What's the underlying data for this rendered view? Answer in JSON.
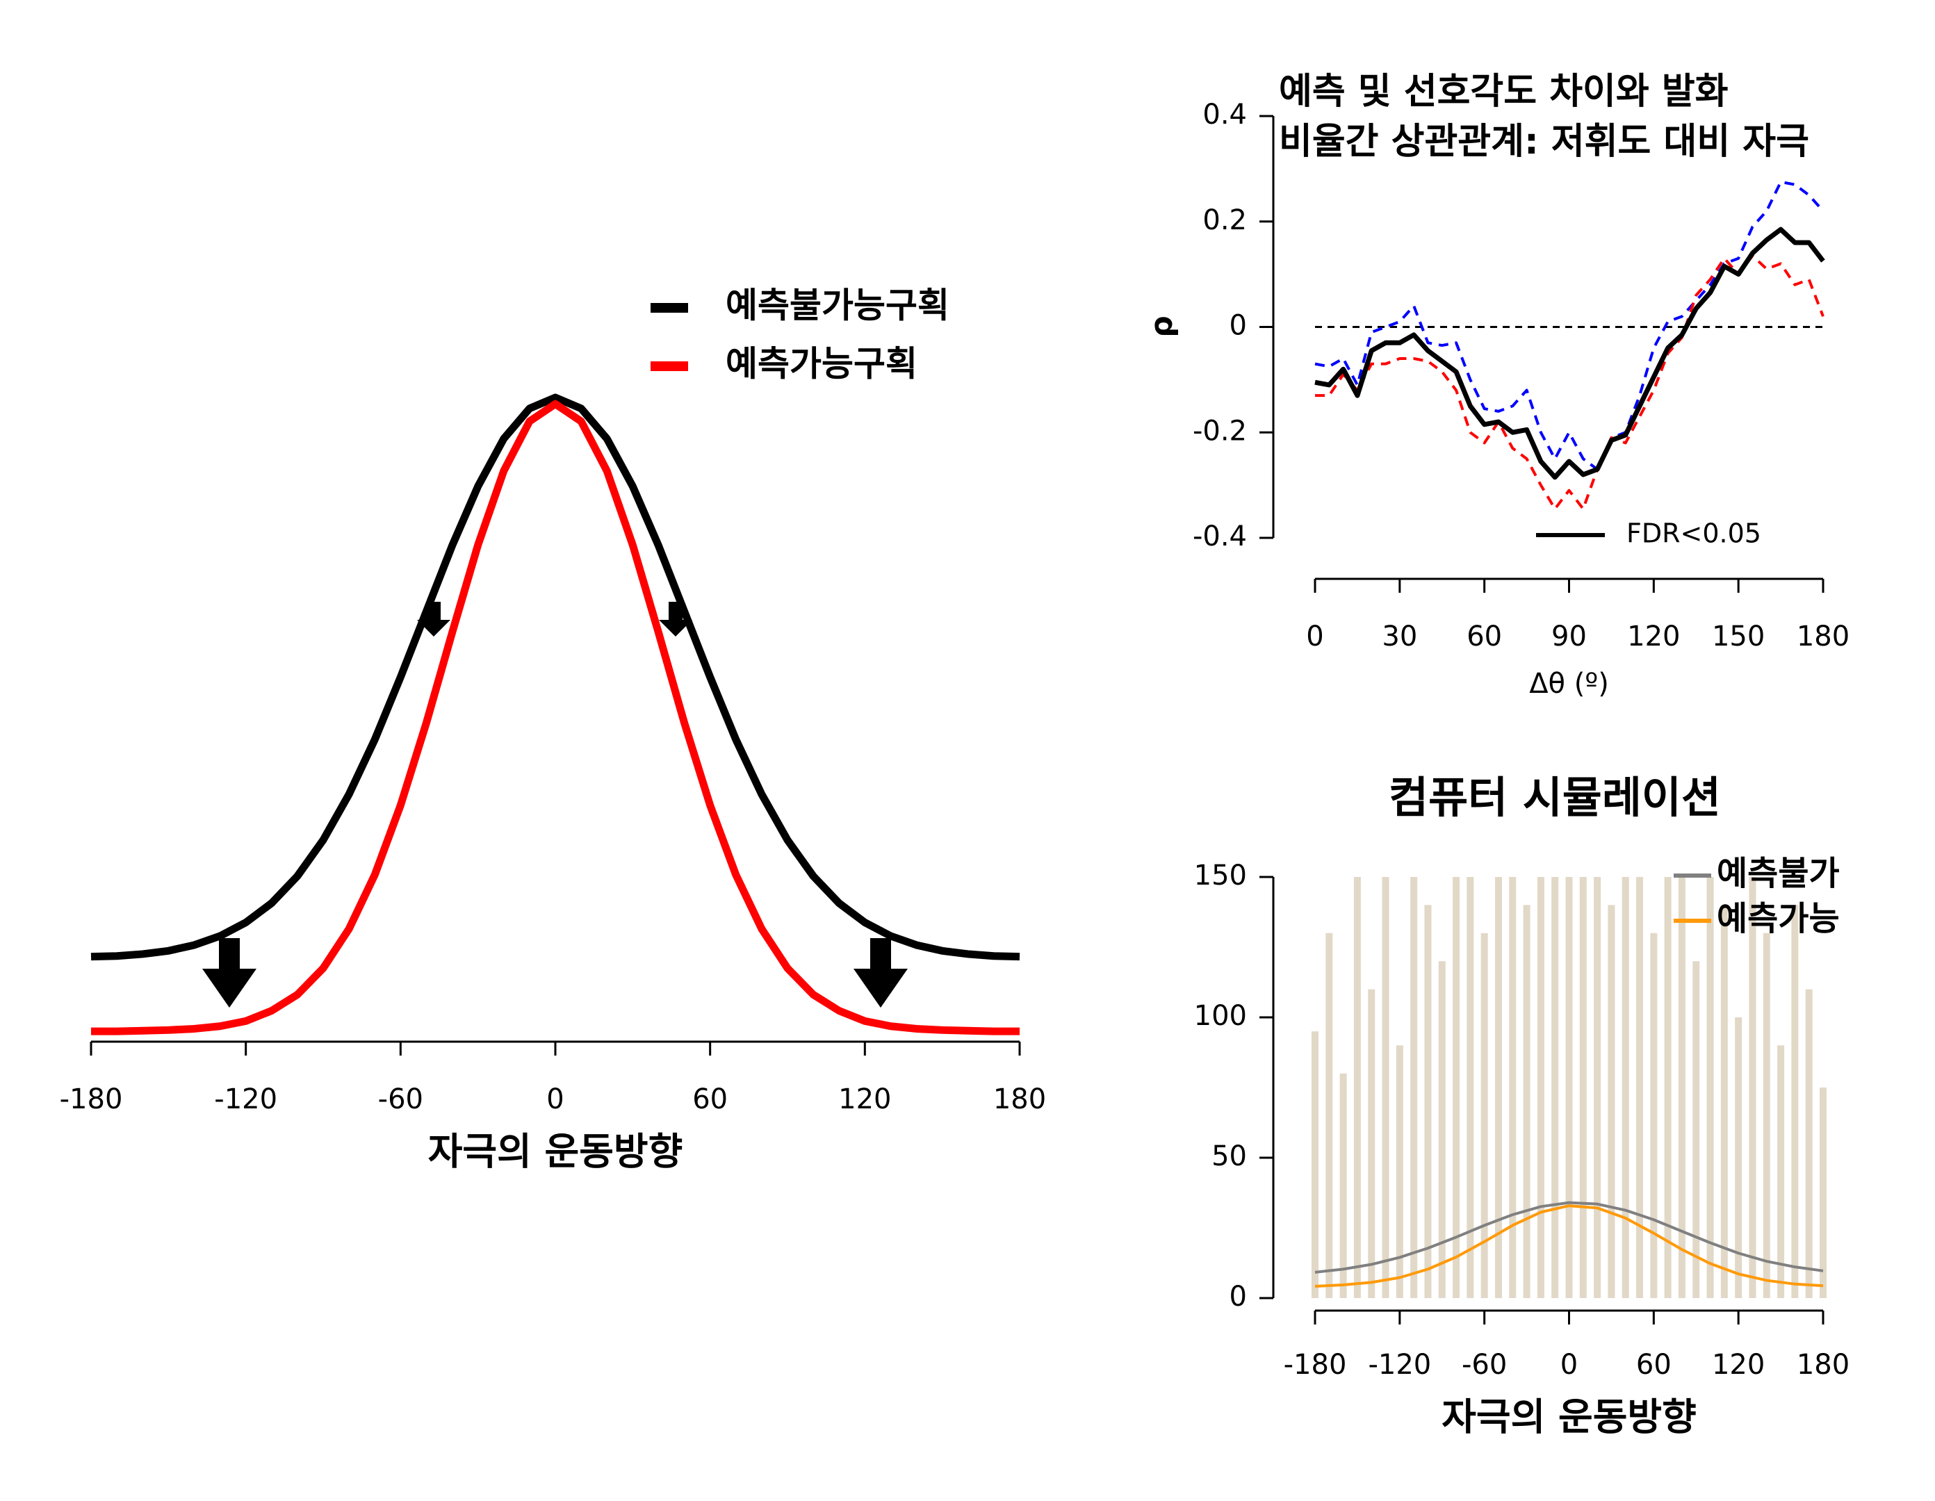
{
  "chart_data": [
    {
      "type": "line",
      "xlabel": "자극의 운동방향",
      "x": [
        -180,
        -170,
        -160,
        -150,
        -140,
        -130,
        -120,
        -110,
        -100,
        -90,
        -80,
        -70,
        -60,
        -50,
        -40,
        -30,
        -20,
        -10,
        0,
        10,
        20,
        30,
        40,
        50,
        60,
        70,
        80,
        90,
        100,
        110,
        120,
        130,
        140,
        150,
        160,
        170,
        180
      ],
      "xlim": [
        -180,
        180
      ],
      "xticks": [
        -180,
        -120,
        -60,
        0,
        60,
        120,
        180
      ],
      "ylim": [
        0,
        1
      ],
      "legend": "upper right",
      "series": [
        {
          "name": "예측불가능구획",
          "color": "#000000",
          "values": [
            0.132,
            0.133,
            0.136,
            0.141,
            0.15,
            0.164,
            0.185,
            0.215,
            0.257,
            0.313,
            0.384,
            0.469,
            0.566,
            0.668,
            0.77,
            0.862,
            0.936,
            0.983,
            1.0,
            0.983,
            0.936,
            0.862,
            0.77,
            0.668,
            0.566,
            0.469,
            0.384,
            0.313,
            0.257,
            0.215,
            0.185,
            0.164,
            0.15,
            0.141,
            0.136,
            0.133,
            0.132
          ]
        },
        {
          "name": "예측가능구획",
          "color": "#ff0000",
          "values": [
            0.016,
            0.016,
            0.017,
            0.018,
            0.02,
            0.024,
            0.032,
            0.048,
            0.073,
            0.114,
            0.175,
            0.259,
            0.367,
            0.495,
            0.635,
            0.771,
            0.886,
            0.963,
            0.99,
            0.963,
            0.886,
            0.771,
            0.635,
            0.495,
            0.367,
            0.259,
            0.175,
            0.114,
            0.073,
            0.048,
            0.032,
            0.024,
            0.02,
            0.018,
            0.017,
            0.016,
            0.016
          ]
        }
      ]
    },
    {
      "type": "line",
      "title": [
        "예측 및 선호각도 차이와 발화",
        "비율간 상관관계: 저휘도 대비 자극"
      ],
      "xlabel": "Δθ (º)",
      "ylabel": "ρ",
      "x": [
        0,
        5,
        10,
        15,
        20,
        25,
        30,
        35,
        40,
        45,
        50,
        55,
        60,
        65,
        70,
        75,
        80,
        85,
        90,
        95,
        100,
        105,
        110,
        115,
        120,
        125,
        130,
        135,
        140,
        145,
        150,
        155,
        160,
        165,
        170,
        175,
        180
      ],
      "xlim": [
        0,
        180
      ],
      "xticks": [
        0,
        30,
        60,
        90,
        120,
        150,
        180
      ],
      "ylim": [
        -0.4,
        0.4
      ],
      "yticks": [
        -0.4,
        -0.2,
        0,
        0.2,
        0.4
      ],
      "hline": 0,
      "legend": "lower right",
      "series": [
        {
          "color": "#0000ff",
          "style": "dashed",
          "values": [
            -0.07,
            -0.075,
            -0.06,
            -0.11,
            -0.01,
            0.0,
            0.01,
            0.04,
            -0.03,
            -0.035,
            -0.03,
            -0.1,
            -0.155,
            -0.16,
            -0.15,
            -0.12,
            -0.2,
            -0.25,
            -0.2,
            -0.25,
            -0.27,
            -0.21,
            -0.2,
            -0.13,
            -0.04,
            0.01,
            0.02,
            0.05,
            0.08,
            0.12,
            0.13,
            0.19,
            0.22,
            0.275,
            0.27,
            0.25,
            0.22
          ]
        },
        {
          "color": "#ff0000",
          "style": "dashed",
          "values": [
            -0.13,
            -0.13,
            -0.09,
            -0.12,
            -0.07,
            -0.07,
            -0.06,
            -0.06,
            -0.065,
            -0.085,
            -0.12,
            -0.2,
            -0.22,
            -0.18,
            -0.23,
            -0.25,
            -0.3,
            -0.345,
            -0.31,
            -0.345,
            -0.27,
            -0.21,
            -0.22,
            -0.17,
            -0.12,
            -0.05,
            -0.02,
            0.06,
            0.09,
            0.13,
            0.1,
            0.135,
            0.11,
            0.12,
            0.08,
            0.09,
            0.02
          ]
        },
        {
          "name": "FDR<0.05",
          "color": "#000000",
          "values": [
            -0.105,
            -0.11,
            -0.08,
            -0.13,
            -0.045,
            -0.03,
            -0.03,
            -0.015,
            -0.045,
            -0.065,
            -0.085,
            -0.15,
            -0.185,
            -0.18,
            -0.2,
            -0.195,
            -0.255,
            -0.285,
            -0.255,
            -0.28,
            -0.27,
            -0.215,
            -0.205,
            -0.15,
            -0.095,
            -0.04,
            -0.015,
            0.035,
            0.065,
            0.115,
            0.1,
            0.14,
            0.165,
            0.185,
            0.16,
            0.16,
            0.125
          ]
        }
      ]
    },
    {
      "type": "line",
      "title": [
        "컴퓨터 시뮬레이션"
      ],
      "xlabel": "자극의 운동방향",
      "x": [
        -180,
        -160,
        -140,
        -120,
        -100,
        -80,
        -60,
        -40,
        -20,
        0,
        20,
        40,
        60,
        80,
        100,
        120,
        140,
        160,
        180
      ],
      "xlim": [
        -180,
        180
      ],
      "xticks": [
        -180,
        -120,
        -60,
        0,
        60,
        120,
        180
      ],
      "ylim": [
        0,
        150
      ],
      "yticks": [
        0,
        50,
        100,
        150
      ],
      "legend": "upper right",
      "background": {
        "color": "#c9b99b",
        "x": [
          -180,
          -170,
          -160,
          -150,
          -140,
          -130,
          -120,
          -110,
          -100,
          -90,
          -80,
          -70,
          -60,
          -50,
          -40,
          -30,
          -20,
          -10,
          0,
          10,
          20,
          30,
          40,
          50,
          60,
          70,
          80,
          90,
          100,
          110,
          120,
          130,
          140,
          150,
          160,
          170,
          180
        ],
        "values": [
          95,
          130,
          80,
          150,
          110,
          150,
          90,
          150,
          140,
          120,
          150,
          150,
          130,
          150,
          150,
          140,
          150,
          150,
          150,
          150,
          150,
          140,
          150,
          150,
          130,
          150,
          150,
          120,
          150,
          140,
          100,
          150,
          130,
          90,
          140,
          110,
          75
        ]
      },
      "series": [
        {
          "name": "예측불가",
          "color": "#808080",
          "values": [
            9.2,
            10.3,
            12.0,
            14.5,
            17.8,
            21.7,
            25.9,
            29.7,
            32.6,
            34.0,
            33.5,
            31.3,
            27.9,
            23.8,
            19.7,
            16.0,
            13.1,
            11.1,
            9.7
          ]
        },
        {
          "name": "예측가능",
          "color": "#ff9a0a",
          "values": [
            4.2,
            4.7,
            5.6,
            7.3,
            10.3,
            14.6,
            20.1,
            25.9,
            30.6,
            32.9,
            32.1,
            28.5,
            23.1,
            17.3,
            12.3,
            8.6,
            6.3,
            5.0,
            4.4
          ]
        }
      ]
    }
  ]
}
